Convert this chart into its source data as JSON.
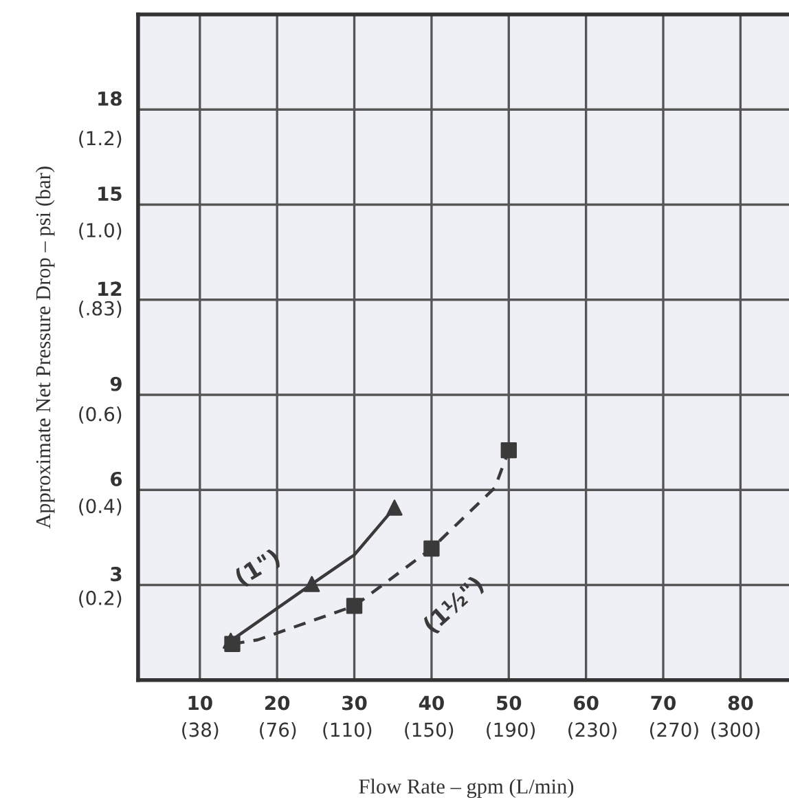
{
  "chart_data": {
    "type": "line",
    "xlabel": "Flow Rate – gpm (L/min)",
    "y2label": "Approximate Net Pressure Drop – psi (bar)",
    "xlim": [
      2,
      87
    ],
    "ylim": [
      0,
      21
    ],
    "xticks": [
      10,
      20,
      30,
      40,
      50,
      60,
      70,
      80
    ],
    "yticks": [
      3,
      6,
      9,
      12,
      15,
      18
    ],
    "x2lim": [
      7.6,
      328.9
    ],
    "x2ticks": [
      {
        "value": 38,
        "label": "(38)"
      },
      {
        "value": 76,
        "label": "(76)"
      },
      {
        "value": 110,
        "label": "(110)"
      },
      {
        "value": 150,
        "label": "(150)"
      },
      {
        "value": 190,
        "label": "(190)"
      },
      {
        "value": 230,
        "label": "(230)"
      },
      {
        "value": 270,
        "label": "(270)"
      },
      {
        "value": 300,
        "label": "(300)"
      }
    ],
    "y2lim": [
      0.025,
      1.473
    ],
    "y2ticks": [
      {
        "value": 0.2,
        "label": "(0.2)"
      },
      {
        "value": 0.4,
        "label": "(0.4)"
      },
      {
        "value": 0.6,
        "label": "(0.6)"
      },
      {
        "value": 0.83,
        "label": "(.83)"
      },
      {
        "value": 1.0,
        "label": "(1.0)"
      },
      {
        "value": 1.2,
        "label": "(1.2)"
      }
    ],
    "grid": true,
    "series": [
      {
        "name": "(1\")",
        "line_style": "solid",
        "marker": "none",
        "color": "#3a3a3a",
        "x": [
          14,
          24.5,
          30,
          35.2
        ],
        "values": [
          1.24,
          3.03,
          3.95,
          5.44
        ]
      },
      {
        "name": "(1½\")",
        "line_style": "dashed",
        "marker": "none",
        "color": "#3a3a3a",
        "x": [
          14.2,
          17.5,
          30,
          40,
          48.2,
          50
        ],
        "values": [
          1.14,
          1.27,
          2.34,
          4.15,
          6.07,
          7.25
        ]
      },
      {
        "type": "scatter",
        "marker": "square",
        "color": "#3a3a3a",
        "x": [
          14.2,
          30,
          40,
          50
        ],
        "values": [
          1.14,
          2.34,
          4.15,
          7.25
        ]
      },
      {
        "type": "scatter",
        "marker": "triangle",
        "color": "#3a3a3a",
        "x": [
          14,
          24.5,
          35.2
        ],
        "values": [
          1.24,
          3.03,
          5.44
        ]
      }
    ]
  }
}
